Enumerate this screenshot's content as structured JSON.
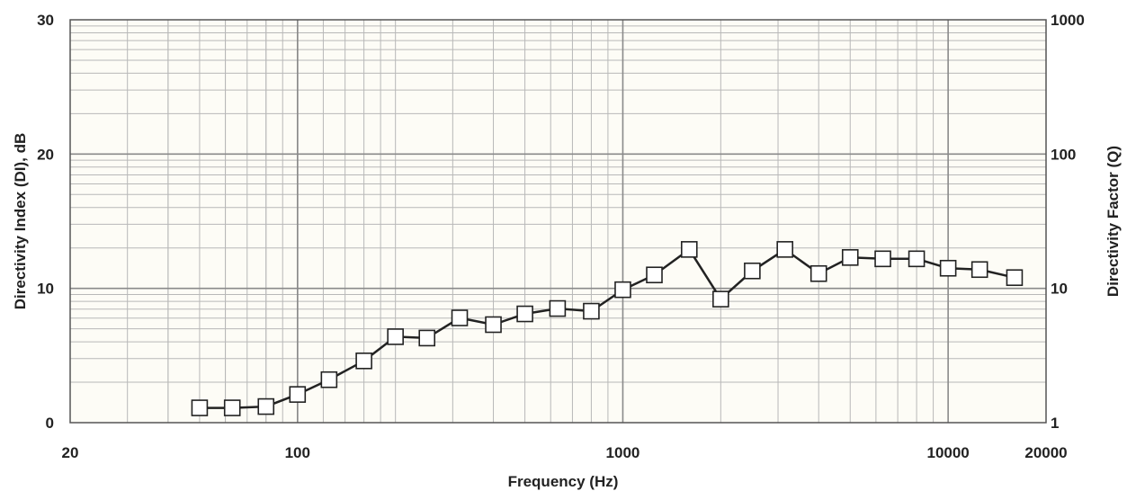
{
  "chart_data": {
    "type": "line",
    "xlabel": "Frequency (Hz)",
    "ylabel": "Directivity Index (DI), dB",
    "ylabel_right": "Directivity Factor (Q)",
    "x_scale": "log",
    "xlim": [
      20,
      20000
    ],
    "ylim": [
      0,
      30
    ],
    "y2_scale": "log",
    "y2lim": [
      1,
      1000
    ],
    "grid": true,
    "x_tick_labels": [
      "20",
      "100",
      "1000",
      "10000",
      "20000"
    ],
    "y_tick_labels": [
      "0",
      "10",
      "20",
      "30"
    ],
    "y2_tick_labels": [
      "1",
      "10",
      "100",
      "1000"
    ],
    "series": [
      {
        "x": [
          50,
          63,
          80,
          100,
          125,
          160,
          200,
          250,
          315,
          400,
          500,
          630,
          800,
          1000,
          1250,
          1600,
          2000,
          2500,
          3150,
          4000,
          5000,
          6300,
          8000,
          10000,
          12500,
          16000
        ],
        "y": [
          1.1,
          1.1,
          1.2,
          2.1,
          3.2,
          4.6,
          6.4,
          6.3,
          7.8,
          7.3,
          8.1,
          8.5,
          8.3,
          9.9,
          11.0,
          12.9,
          9.2,
          11.3,
          12.9,
          11.1,
          12.3,
          12.2,
          12.2,
          11.5,
          11.4,
          10.8
        ]
      }
    ],
    "colors": {
      "background": "#fdfcf6",
      "grid_major": "#8a8a8a",
      "grid_minor": "#b8b8b8",
      "line": "#222222",
      "marker_fill": "#ffffff"
    }
  }
}
